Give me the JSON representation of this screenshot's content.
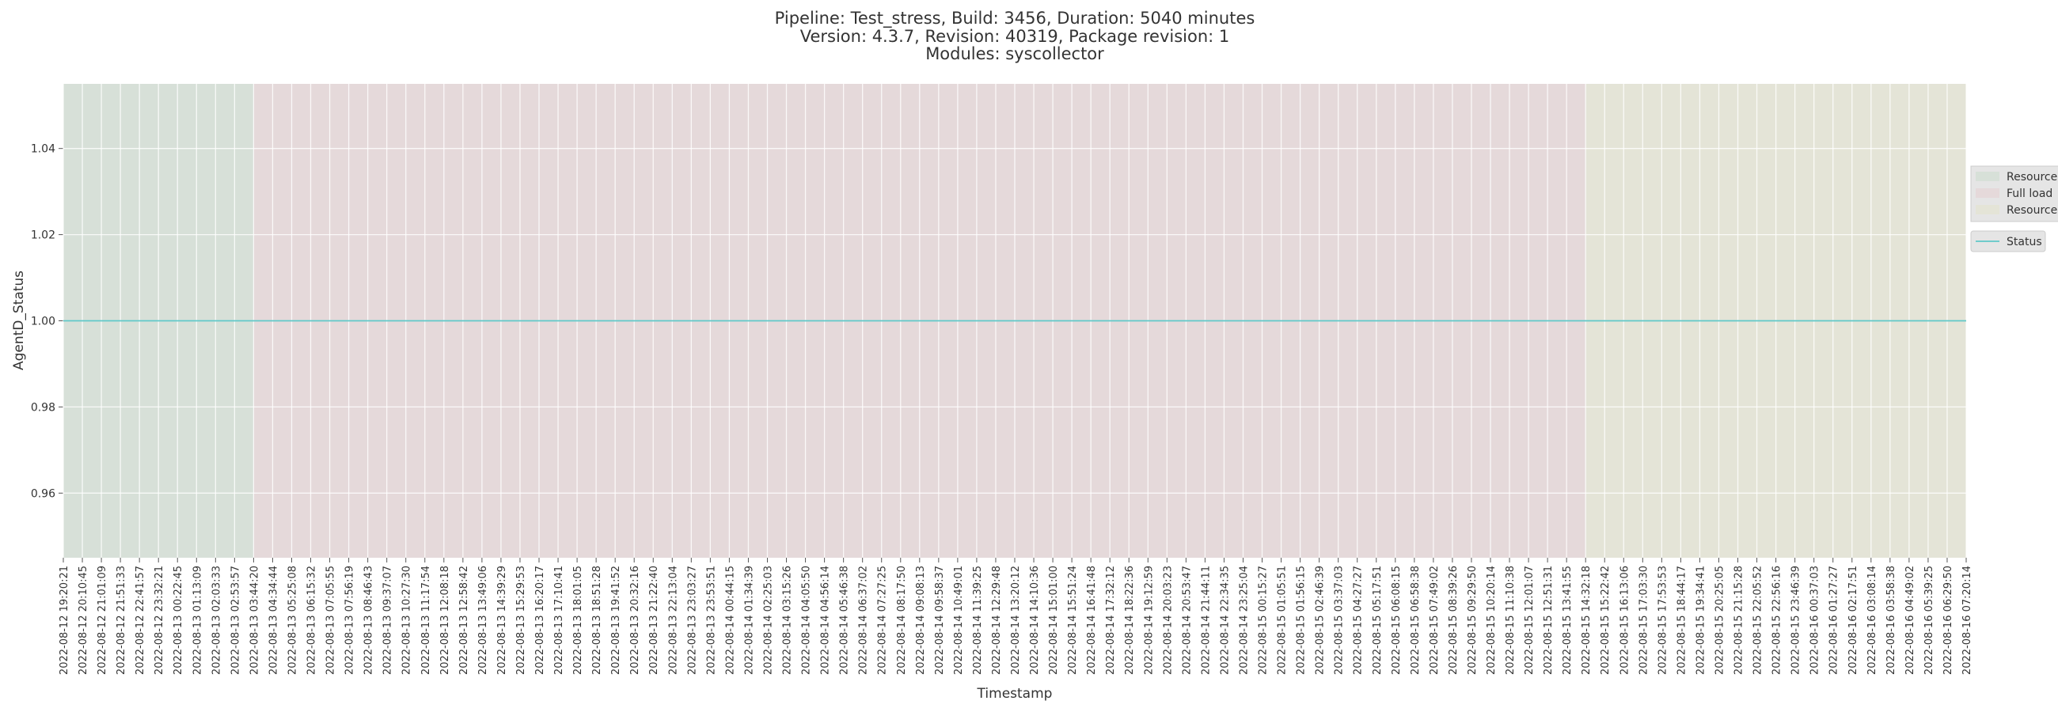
{
  "chart_data": {
    "type": "line",
    "title": [
      "Pipeline: Test_stress, Build: 3456, Duration: 5040 minutes",
      "Version: 4.3.7, Revision: 40319, Package revision: 1",
      "Modules: syscollector"
    ],
    "x_label": "Timestamp",
    "y_label": "AgentD_Status",
    "categories": [
      "2022-08-12 19:20:21",
      "2022-08-12 20:10:45",
      "2022-08-12 21:01:09",
      "2022-08-12 21:51:33",
      "2022-08-12 22:41:57",
      "2022-08-12 23:32:21",
      "2022-08-13 00:22:45",
      "2022-08-13 01:13:09",
      "2022-08-13 02:03:33",
      "2022-08-13 02:53:57",
      "2022-08-13 03:44:20",
      "2022-08-13 04:34:44",
      "2022-08-13 05:25:08",
      "2022-08-13 06:15:32",
      "2022-08-13 07:05:55",
      "2022-08-13 07:56:19",
      "2022-08-13 08:46:43",
      "2022-08-13 09:37:07",
      "2022-08-13 10:27:30",
      "2022-08-13 11:17:54",
      "2022-08-13 12:08:18",
      "2022-08-13 12:58:42",
      "2022-08-13 13:49:06",
      "2022-08-13 14:39:29",
      "2022-08-13 15:29:53",
      "2022-08-13 16:20:17",
      "2022-08-13 17:10:41",
      "2022-08-13 18:01:05",
      "2022-08-13 18:51:28",
      "2022-08-13 19:41:52",
      "2022-08-13 20:32:16",
      "2022-08-13 21:22:40",
      "2022-08-13 22:13:04",
      "2022-08-13 23:03:27",
      "2022-08-13 23:53:51",
      "2022-08-14 00:44:15",
      "2022-08-14 01:34:39",
      "2022-08-14 02:25:03",
      "2022-08-14 03:15:26",
      "2022-08-14 04:05:50",
      "2022-08-14 04:56:14",
      "2022-08-14 05:46:38",
      "2022-08-14 06:37:02",
      "2022-08-14 07:27:25",
      "2022-08-14 08:17:50",
      "2022-08-14 09:08:13",
      "2022-08-14 09:58:37",
      "2022-08-14 10:49:01",
      "2022-08-14 11:39:25",
      "2022-08-14 12:29:48",
      "2022-08-14 13:20:12",
      "2022-08-14 14:10:36",
      "2022-08-14 15:01:00",
      "2022-08-14 15:51:24",
      "2022-08-14 16:41:48",
      "2022-08-14 17:32:12",
      "2022-08-14 18:22:36",
      "2022-08-14 19:12:59",
      "2022-08-14 20:03:23",
      "2022-08-14 20:53:47",
      "2022-08-14 21:44:11",
      "2022-08-14 22:34:35",
      "2022-08-14 23:25:04",
      "2022-08-15 00:15:27",
      "2022-08-15 01:05:51",
      "2022-08-15 01:56:15",
      "2022-08-15 02:46:39",
      "2022-08-15 03:37:03",
      "2022-08-15 04:27:27",
      "2022-08-15 05:17:51",
      "2022-08-15 06:08:15",
      "2022-08-15 06:58:38",
      "2022-08-15 07:49:02",
      "2022-08-15 08:39:26",
      "2022-08-15 09:29:50",
      "2022-08-15 10:20:14",
      "2022-08-15 11:10:38",
      "2022-08-15 12:01:07",
      "2022-08-15 12:51:31",
      "2022-08-15 13:41:55",
      "2022-08-15 14:32:18",
      "2022-08-15 15:22:42",
      "2022-08-15 16:13:06",
      "2022-08-15 17:03:30",
      "2022-08-15 17:53:53",
      "2022-08-15 18:44:17",
      "2022-08-15 19:34:41",
      "2022-08-15 20:25:05",
      "2022-08-15 21:15:28",
      "2022-08-15 22:05:52",
      "2022-08-15 22:56:16",
      "2022-08-15 23:46:39",
      "2022-08-16 00:37:03",
      "2022-08-16 01:27:27",
      "2022-08-16 02:17:51",
      "2022-08-16 03:08:14",
      "2022-08-16 03:58:38",
      "2022-08-16 04:49:02",
      "2022-08-16 05:39:25",
      "2022-08-16 06:29:50",
      "2022-08-16 07:20:14"
    ],
    "series": [
      {
        "name": "Status",
        "color": "#5fc8c8",
        "values": [
          1,
          1,
          1,
          1,
          1,
          1,
          1,
          1,
          1,
          1,
          1,
          1,
          1,
          1,
          1,
          1,
          1,
          1,
          1,
          1,
          1,
          1,
          1,
          1,
          1,
          1,
          1,
          1,
          1,
          1,
          1,
          1,
          1,
          1,
          1,
          1,
          1,
          1,
          1,
          1,
          1,
          1,
          1,
          1,
          1,
          1,
          1,
          1,
          1,
          1,
          1,
          1,
          1,
          1,
          1,
          1,
          1,
          1,
          1,
          1,
          1,
          1,
          1,
          1,
          1,
          1,
          1,
          1,
          1,
          1,
          1,
          1,
          1,
          1,
          1,
          1,
          1,
          1,
          1,
          1,
          1,
          1,
          1,
          1,
          1,
          1,
          1,
          1,
          1,
          1,
          1,
          1,
          1,
          1,
          1,
          1,
          1,
          1,
          1,
          1,
          1
        ]
      }
    ],
    "regions": [
      {
        "name": "Resources",
        "start": "2022-08-12 19:20:21",
        "end": "2022-08-13 03:44:20",
        "color": "#d7e0d8"
      },
      {
        "name": "Full load",
        "start": "2022-08-13 03:44:20",
        "end": "2022-08-15 14:32:18",
        "color": "#e5d9da"
      },
      {
        "name": "Resources",
        "start": "2022-08-15 14:32:18",
        "end": "2022-08-16 07:20:14",
        "color": "#e4e4d7"
      }
    ],
    "ylim": [
      0.945,
      1.055
    ],
    "yticks": [
      0.96,
      0.98,
      {
        "value": 1,
        "label": "1.00"
      },
      1.02,
      1.04
    ],
    "grid": true
  }
}
